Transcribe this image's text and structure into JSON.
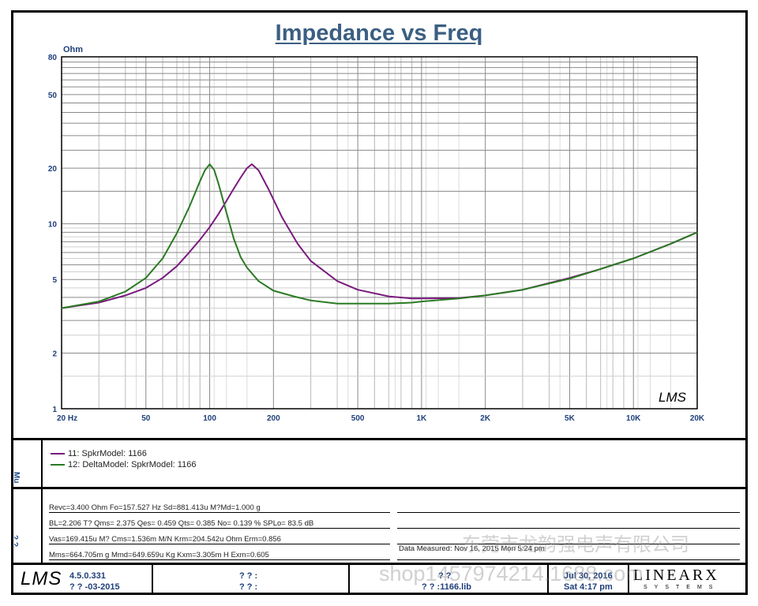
{
  "header": {
    "title": "Impedance vs Freq"
  },
  "chart_data": {
    "type": "line",
    "title": "Impedance vs Freq",
    "ylabel": "Ohm",
    "xlabel": "Hz",
    "xscale": "log",
    "yscale": "log",
    "xlim": [
      20,
      20000
    ],
    "ylim": [
      1,
      80
    ],
    "grid": true,
    "xticks": [
      {
        "v": 20,
        "label": "20  Hz"
      },
      {
        "v": 50,
        "label": "50"
      },
      {
        "v": 100,
        "label": "100"
      },
      {
        "v": 200,
        "label": "200"
      },
      {
        "v": 500,
        "label": "500"
      },
      {
        "v": 1000,
        "label": "1K"
      },
      {
        "v": 2000,
        "label": "2K"
      },
      {
        "v": 5000,
        "label": "5K"
      },
      {
        "v": 10000,
        "label": "10K"
      },
      {
        "v": 20000,
        "label": "20K"
      }
    ],
    "yticks": [
      {
        "v": 1,
        "label": "1"
      },
      {
        "v": 2,
        "label": "2"
      },
      {
        "v": 5,
        "label": "5"
      },
      {
        "v": 10,
        "label": "10"
      },
      {
        "v": 20,
        "label": "20"
      },
      {
        "v": 50,
        "label": "50"
      },
      {
        "v": 80,
        "label": "80"
      }
    ],
    "watermark_logo": "LMS",
    "series": [
      {
        "name": "11: SpkrModel: 1166",
        "color": "#7a1a7e",
        "x": [
          20,
          30,
          40,
          50,
          60,
          70,
          80,
          90,
          100,
          110,
          120,
          130,
          140,
          150,
          158,
          170,
          190,
          220,
          260,
          300,
          400,
          500,
          700,
          900,
          1000,
          1500,
          2000,
          3000,
          5000,
          7000,
          10000,
          15000,
          20000
        ],
        "y": [
          3.5,
          3.75,
          4.1,
          4.5,
          5.1,
          5.9,
          7.0,
          8.2,
          9.6,
          11.3,
          13.3,
          15.5,
          17.8,
          20.0,
          21.0,
          19.5,
          15.3,
          10.8,
          7.8,
          6.3,
          4.9,
          4.4,
          4.05,
          3.95,
          3.95,
          3.97,
          4.1,
          4.4,
          5.1,
          5.7,
          6.5,
          7.8,
          9.0
        ]
      },
      {
        "name": "12: DeltaModel: SpkrModel: 1166",
        "color": "#2a7a22",
        "x": [
          20,
          30,
          40,
          50,
          60,
          70,
          80,
          90,
          95,
          100,
          105,
          110,
          120,
          130,
          140,
          150,
          170,
          200,
          250,
          300,
          400,
          500,
          700,
          900,
          1000,
          1500,
          2000,
          3000,
          5000,
          7000,
          10000,
          15000,
          20000
        ],
        "y": [
          3.5,
          3.8,
          4.3,
          5.1,
          6.5,
          8.9,
          12.3,
          17.0,
          19.5,
          21.0,
          19.6,
          16.5,
          11.5,
          8.3,
          6.6,
          5.8,
          4.9,
          4.35,
          4.05,
          3.85,
          3.7,
          3.7,
          3.7,
          3.75,
          3.8,
          3.95,
          4.1,
          4.4,
          5.05,
          5.7,
          6.5,
          7.8,
          9.0
        ]
      }
    ]
  },
  "legend": {
    "items": [
      {
        "label": "11: SpkrModel: 1166",
        "color": "#7a1a7e"
      },
      {
        "label": "12: DeltaModel: SpkrModel: 1166",
        "color": "#2a7a22"
      }
    ]
  },
  "side_labels": {
    "legend_panel": "Mu",
    "params_panel": "? ?"
  },
  "params": {
    "line1": "Revc=3.400 Ohm  Fo=157.527 Hz  Sd=881.413u M?Md=1.000 g",
    "line2": "BL=2.206 T?   Qms= 2.375  Qes= 0.459  Qts= 0.385  No= 0.139 %  SPLo= 83.5 dB",
    "line3": "Vas=169.415u M? Cms=1.536m M/N  Krm=204.542u Ohm  Erm=0.856",
    "line4": "Mms=664.705m g  Mmd=649.659u Kg  Kxm=3.305m H  Exm=0.605",
    "measured": "Data Measured: Nov 16, 2015  Mon  5:24 pm"
  },
  "footer": {
    "logo": "LMS",
    "version": "4.5.0.331",
    "version_date": "? ? -03-2015",
    "mid_line1": "? ? :",
    "mid_line2": "? ? :",
    "file_line1": "? ?",
    "file_line2": "? ? :1166.lib",
    "date_line1": "Jul 30, 2016",
    "date_line2": "Sat  4:17 pm",
    "brand": "LINEARX",
    "brand_sub": "SYSTEMS"
  },
  "watermarks": {
    "line1": "东莞市龙韵强电声有限公司",
    "line2": "shop1457974214.1688.com"
  }
}
